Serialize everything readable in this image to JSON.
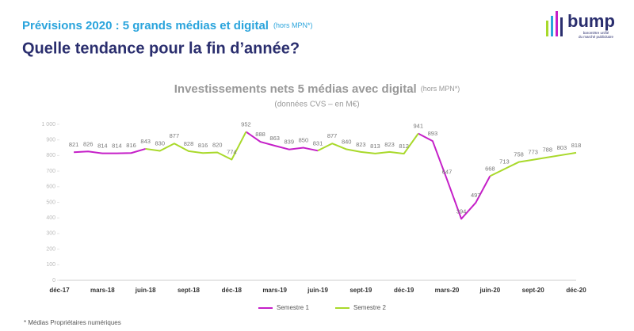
{
  "header": {
    "title": "Prévisions 2020  : 5 grands médias et digital",
    "title_note": "(hors MPN*)",
    "subtitle": "Quelle tendance pour la fin d’année?"
  },
  "logo": {
    "name": "bump",
    "tagline": [
      "baromètre unifié",
      "du marché publicitaire"
    ]
  },
  "footnote": "* Médias Propriétaires numériques",
  "chart_data": {
    "type": "line",
    "title": "Investissements nets 5 médias avec digital",
    "title_note": "(hors MPN*)",
    "subtitle": "(données CVS – en M€)",
    "categories": [
      "déc-17",
      null,
      null,
      "mars-18",
      null,
      null,
      "juin-18",
      null,
      null,
      "sept-18",
      null,
      null,
      "déc-18",
      null,
      null,
      "mars-19",
      null,
      null,
      "juin-19",
      null,
      null,
      "sept-19",
      null,
      null,
      "déc-19",
      null,
      null,
      "mars-20",
      null,
      null,
      "juin-20",
      null,
      null,
      "sept-20",
      null,
      null,
      "déc-20"
    ],
    "series": [
      {
        "name": "Semestre 1",
        "color": "#c51fc8",
        "values": [
          null,
          821,
          826,
          814,
          814,
          816,
          843,
          null,
          null,
          null,
          null,
          null,
          null,
          952,
          888,
          863,
          839,
          850,
          831,
          null,
          null,
          null,
          null,
          null,
          null,
          941,
          893,
          647,
          394,
          497,
          668,
          null,
          null,
          null,
          null,
          null,
          null
        ]
      },
      {
        "name": "Semestre 2",
        "color": "#a9d92b",
        "values": [
          null,
          null,
          null,
          null,
          null,
          null,
          843,
          830,
          877,
          828,
          816,
          820,
          774,
          952,
          null,
          null,
          null,
          null,
          831,
          877,
          840,
          823,
          813,
          823,
          812,
          941,
          null,
          null,
          null,
          null,
          668,
          713,
          758,
          773,
          788,
          803,
          818
        ]
      }
    ],
    "ylim": [
      0,
      1000
    ],
    "yticks": [
      0,
      100,
      200,
      300,
      400,
      500,
      600,
      700,
      800,
      900,
      {
        "value": 1000,
        "label": "1 000"
      }
    ],
    "grid": false,
    "legend": "bottom"
  }
}
